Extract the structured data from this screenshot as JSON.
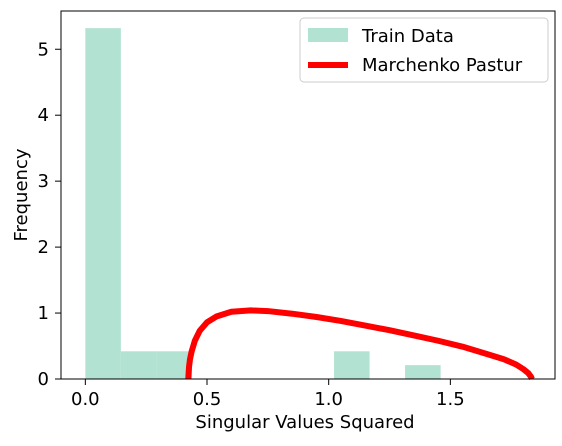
{
  "chart_data": {
    "type": "bar",
    "xlabel": "Singular Values Squared",
    "ylabel": "Frequency",
    "xlim": [
      -0.1,
      1.93
    ],
    "ylim": [
      0,
      5.58
    ],
    "xticks": [
      0.0,
      0.5,
      1.0,
      1.5
    ],
    "xtick_labels": [
      "0.0",
      "0.5",
      "1.0",
      "1.5"
    ],
    "yticks": [
      0,
      1,
      2,
      3,
      4,
      5
    ],
    "ytick_labels": [
      "0",
      "1",
      "2",
      "3",
      "4",
      "5"
    ],
    "grid": false,
    "legend_position": "top-right",
    "series": [
      {
        "name": "Train Data",
        "kind": "histogram",
        "color": "#b2e2d1",
        "bins": [
          {
            "x0": 0.0,
            "x1": 0.146,
            "value": 5.32
          },
          {
            "x0": 0.146,
            "x1": 0.292,
            "value": 0.42
          },
          {
            "x0": 0.292,
            "x1": 0.438,
            "value": 0.42
          },
          {
            "x0": 0.438,
            "x1": 0.584,
            "value": 0.0
          },
          {
            "x0": 0.584,
            "x1": 0.73,
            "value": 0.0
          },
          {
            "x0": 0.73,
            "x1": 0.876,
            "value": 0.0
          },
          {
            "x0": 0.876,
            "x1": 1.022,
            "value": 0.0
          },
          {
            "x0": 1.022,
            "x1": 1.168,
            "value": 0.42
          },
          {
            "x0": 1.168,
            "x1": 1.314,
            "value": 0.0
          },
          {
            "x0": 1.314,
            "x1": 1.46,
            "value": 0.21
          }
        ]
      },
      {
        "name": "Marchenko Pastur",
        "kind": "line",
        "color": "#ff0000",
        "points": [
          [
            0.423,
            0.0
          ],
          [
            0.426,
            0.18
          ],
          [
            0.43,
            0.3
          ],
          [
            0.437,
            0.42
          ],
          [
            0.45,
            0.58
          ],
          [
            0.47,
            0.73
          ],
          [
            0.5,
            0.86
          ],
          [
            0.54,
            0.95
          ],
          [
            0.6,
            1.02
          ],
          [
            0.68,
            1.04
          ],
          [
            0.75,
            1.03
          ],
          [
            0.85,
            0.99
          ],
          [
            0.95,
            0.94
          ],
          [
            1.05,
            0.88
          ],
          [
            1.15,
            0.81
          ],
          [
            1.25,
            0.74
          ],
          [
            1.35,
            0.66
          ],
          [
            1.45,
            0.58
          ],
          [
            1.55,
            0.49
          ],
          [
            1.65,
            0.38
          ],
          [
            1.72,
            0.3
          ],
          [
            1.77,
            0.22
          ],
          [
            1.8,
            0.15
          ],
          [
            1.82,
            0.09
          ],
          [
            1.832,
            0.03
          ],
          [
            1.835,
            0.0
          ]
        ]
      }
    ]
  }
}
